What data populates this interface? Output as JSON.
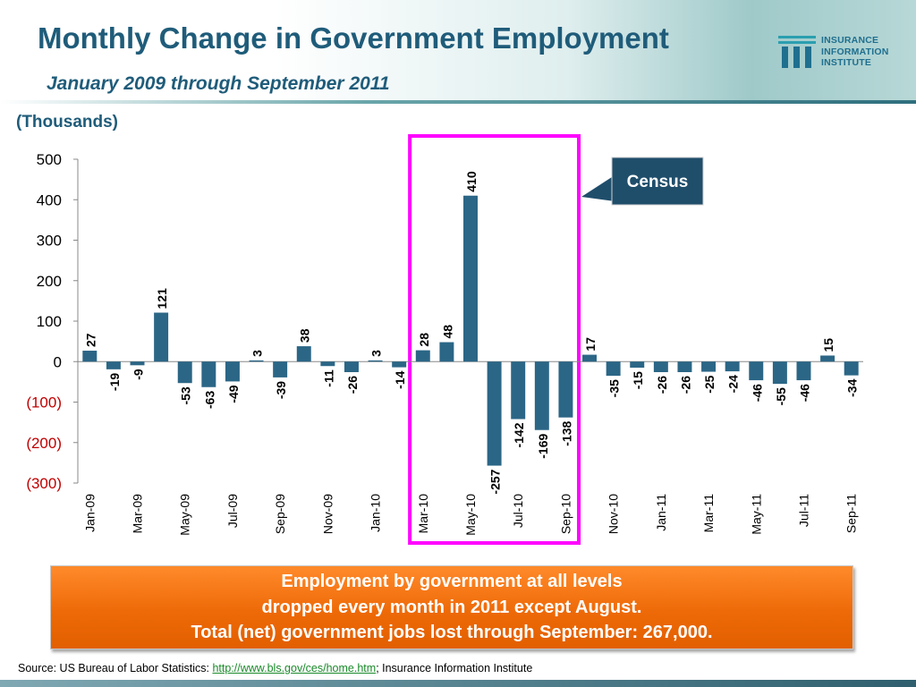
{
  "slide": {
    "title": "Monthly Change in Government Employment",
    "subtitle": "January 2009 through September 2011",
    "units_label": "(Thousands)"
  },
  "logo": {
    "lines": [
      "INSURANCE",
      "INFORMATION",
      "INSTITUTE"
    ]
  },
  "colors": {
    "title": "#1f5c7a",
    "bar": "#2b6686",
    "negative_tick": "#c00000",
    "highlight": "#ff00ff",
    "callout_tag": "#1f4e6b",
    "callout": "#ee6a08"
  },
  "callout_tag": {
    "label": "Census"
  },
  "callout": {
    "lines": [
      "Employment by government at all levels",
      "dropped every month in 2011 except August.",
      "Total (net) government jobs lost through September: 267,000."
    ]
  },
  "source": {
    "prefix": "Source: US Bureau of Labor Statistics: ",
    "link": "http://www.bls.gov/ces/home.htm",
    "suffix": "; Insurance Information Institute"
  },
  "chart_data": {
    "type": "bar",
    "title": "Monthly Change in Government Employment",
    "subtitle": "January 2009 through September 2011",
    "ylabel": "(Thousands)",
    "xlabel": "",
    "ylim": [
      -300,
      500
    ],
    "yticks": [
      {
        "value": 500,
        "label": "500"
      },
      {
        "value": 400,
        "label": "400"
      },
      {
        "value": 300,
        "label": "300"
      },
      {
        "value": 200,
        "label": "200"
      },
      {
        "value": 100,
        "label": "100"
      },
      {
        "value": 0,
        "label": "0"
      },
      {
        "value": -100,
        "label": "(100)"
      },
      {
        "value": -200,
        "label": "(200)"
      },
      {
        "value": -300,
        "label": "(300)"
      }
    ],
    "categories": [
      "Jan-09",
      "Feb-09",
      "Mar-09",
      "Apr-09",
      "May-09",
      "Jun-09",
      "Jul-09",
      "Aug-09",
      "Sep-09",
      "Oct-09",
      "Nov-09",
      "Dec-09",
      "Jan-10",
      "Feb-10",
      "Mar-10",
      "Apr-10",
      "May-10",
      "Jun-10",
      "Jul-10",
      "Aug-10",
      "Sep-10",
      "Oct-10",
      "Nov-10",
      "Dec-10",
      "Jan-11",
      "Feb-11",
      "Mar-11",
      "Apr-11",
      "May-11",
      "Jun-11",
      "Jul-11",
      "Aug-11",
      "Sep-11"
    ],
    "visible_xticks": [
      "Jan-09",
      "Mar-09",
      "May-09",
      "Jul-09",
      "Sep-09",
      "Nov-09",
      "Jan-10",
      "Mar-10",
      "May-10",
      "Jul-10",
      "Sep-10",
      "Nov-10",
      "Jan-11",
      "Mar-11",
      "May-11",
      "Jul-11",
      "Sep-11"
    ],
    "values": [
      27,
      -19,
      -9,
      121,
      -53,
      -63,
      -49,
      3,
      -39,
      38,
      -11,
      -26,
      3,
      -14,
      28,
      48,
      410,
      -257,
      -142,
      -169,
      -138,
      17,
      -35,
      -15,
      -26,
      -26,
      -25,
      -24,
      -46,
      -55,
      -46,
      15,
      -34
    ],
    "highlight_range": [
      "Mar-10",
      "Sep-10"
    ],
    "grid": false,
    "legend": "none"
  }
}
